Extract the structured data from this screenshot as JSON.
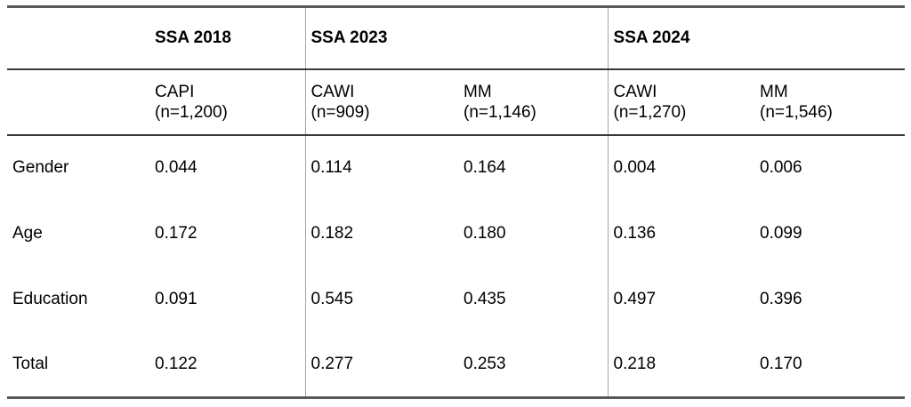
{
  "table": {
    "group_headers": [
      {
        "label": "SSA 2018"
      },
      {
        "label": "SSA 2023"
      },
      {
        "label": "SSA 2024"
      }
    ],
    "method_headers": [
      {
        "method": "CAPI",
        "n": "(n=1,200)"
      },
      {
        "method": "CAWI",
        "n": "(n=909)"
      },
      {
        "method": "MM",
        "n": "(n=1,146)"
      },
      {
        "method": "CAWI",
        "n": "(n=1,270)"
      },
      {
        "method": "MM",
        "n": "(n=1,546)"
      }
    ],
    "rows": [
      {
        "label": "Gender",
        "values": [
          "0.044",
          "0.114",
          "0.164",
          "0.004",
          "0.006"
        ]
      },
      {
        "label": "Age",
        "values": [
          "0.172",
          "0.182",
          "0.180",
          "0.136",
          "0.099"
        ]
      },
      {
        "label": "Education",
        "values": [
          "0.091",
          "0.545",
          "0.435",
          "0.497",
          "0.396"
        ]
      },
      {
        "label": "Total",
        "values": [
          "0.122",
          "0.277",
          "0.253",
          "0.218",
          "0.170"
        ]
      }
    ]
  },
  "colors": {
    "border_heavy": "#595959",
    "border_inner": "#3b3b3b",
    "divider_vertical": "#a6a6a6",
    "text": "#000000",
    "background": "#ffffff"
  },
  "chart_data": {
    "type": "table",
    "column_groups": [
      "SSA 2018",
      "SSA 2023",
      "SSA 2023",
      "SSA 2024",
      "SSA 2024"
    ],
    "columns": [
      "CAPI (n=1,200)",
      "CAWI (n=909)",
      "MM (n=1,146)",
      "CAWI (n=1,270)",
      "MM (n=1,546)"
    ],
    "row_labels": [
      "Gender",
      "Age",
      "Education",
      "Total"
    ],
    "values": [
      [
        0.044,
        0.114,
        0.164,
        0.004,
        0.006
      ],
      [
        0.172,
        0.182,
        0.18,
        0.136,
        0.099
      ],
      [
        0.091,
        0.545,
        0.435,
        0.497,
        0.396
      ],
      [
        0.122,
        0.277,
        0.253,
        0.218,
        0.17
      ]
    ]
  }
}
